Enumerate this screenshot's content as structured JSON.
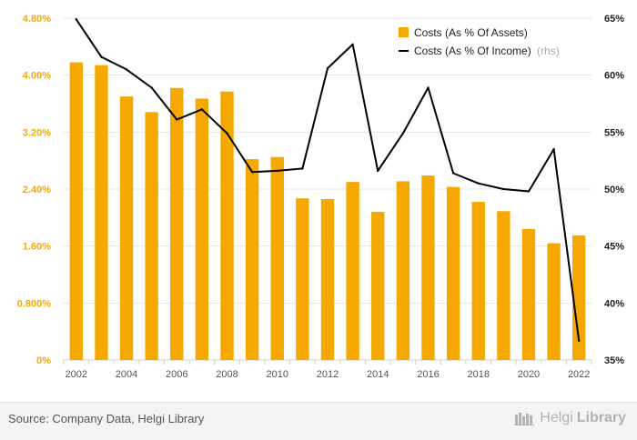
{
  "chart_data": {
    "type": "bar+line",
    "categories": [
      "2002",
      "2003",
      "2004",
      "2005",
      "2006",
      "2007",
      "2008",
      "2009",
      "2010",
      "2011",
      "2012",
      "2013",
      "2014",
      "2015",
      "2016",
      "2017",
      "2018",
      "2019",
      "2020",
      "2021",
      "2022"
    ],
    "x_tick_labels": [
      "2002",
      "2004",
      "2006",
      "2008",
      "2010",
      "2012",
      "2014",
      "2016",
      "2018",
      "2020",
      "2022"
    ],
    "series": [
      {
        "name": "Costs (As % Of Assets)",
        "kind": "bar",
        "axis": "left",
        "color": "#f5a800",
        "values": [
          4.18,
          4.14,
          3.7,
          3.48,
          3.82,
          3.67,
          3.77,
          2.82,
          2.85,
          2.27,
          2.26,
          2.5,
          2.08,
          2.51,
          2.59,
          2.43,
          2.22,
          2.09,
          1.84,
          1.64,
          1.75
        ]
      },
      {
        "name": "Costs (As % Of Income)",
        "name_suffix": "(rhs)",
        "kind": "line",
        "axis": "right",
        "color": "#000000",
        "values": [
          64.9,
          61.6,
          60.5,
          58.9,
          56.1,
          57.0,
          54.9,
          51.5,
          51.6,
          51.8,
          60.6,
          62.7,
          51.6,
          54.9,
          58.9,
          51.4,
          50.5,
          50.0,
          49.8,
          53.5,
          36.7
        ]
      }
    ],
    "left_axis": {
      "ylim": [
        0,
        4.8
      ],
      "tick_values": [
        0,
        0.8,
        1.6,
        2.4,
        3.2,
        4.0,
        4.8
      ],
      "tick_labels": [
        "0%",
        "0.800%",
        "1.60%",
        "2.40%",
        "3.20%",
        "4.00%",
        "4.80%"
      ],
      "color": "#f5a800"
    },
    "right_axis": {
      "ylim": [
        35,
        65
      ],
      "tick_values": [
        35,
        40,
        45,
        50,
        55,
        60,
        65
      ],
      "tick_labels": [
        "35%",
        "40%",
        "45%",
        "50%",
        "55%",
        "60%",
        "65%"
      ],
      "color": "#222222"
    },
    "grid": true,
    "legend_position": "top-right"
  },
  "footer": {
    "source": "Source: Company Data, Helgi Library",
    "brand_light": "Helgi",
    "brand_bold": "Library"
  }
}
